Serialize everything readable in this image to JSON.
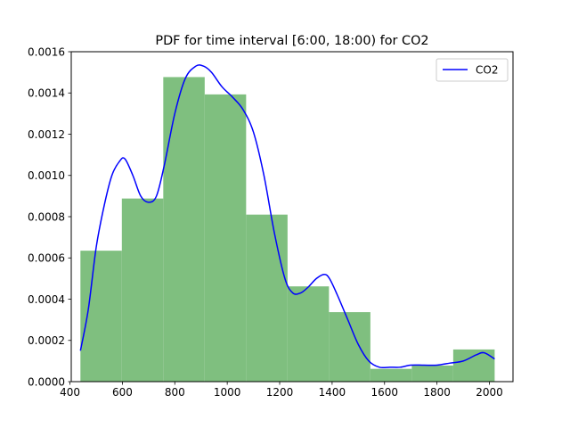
{
  "chart_data": {
    "type": "histogram+line",
    "title": "PDF for time interval [6:00, 18:00) for CO2",
    "xlabel": "",
    "ylabel": "",
    "xlim": [
      405,
      2090
    ],
    "ylim": [
      0,
      0.0016
    ],
    "x_ticks": [
      400,
      600,
      800,
      1000,
      1200,
      1400,
      1600,
      1800,
      2000
    ],
    "y_ticks": [
      0.0,
      0.0002,
      0.0004,
      0.0006,
      0.0008,
      0.001,
      0.0012,
      0.0014,
      0.0016
    ],
    "x_tick_labels": [
      "400",
      "600",
      "800",
      "1000",
      "1200",
      "1400",
      "1600",
      "1800",
      "2000"
    ],
    "y_tick_labels": [
      "0.0000",
      "0.0002",
      "0.0004",
      "0.0006",
      "0.0008",
      "0.0010",
      "0.0012",
      "0.0014",
      "0.0016"
    ],
    "histogram": {
      "color": "#7fbf7f",
      "bins": [
        {
          "x0": 440,
          "x1": 598,
          "density": 0.000635
        },
        {
          "x0": 598,
          "x1": 756,
          "density": 0.000888
        },
        {
          "x0": 756,
          "x1": 914,
          "density": 0.001477
        },
        {
          "x0": 914,
          "x1": 1072,
          "density": 0.001393
        },
        {
          "x0": 1072,
          "x1": 1230,
          "density": 0.00081
        },
        {
          "x0": 1230,
          "x1": 1388,
          "density": 0.000462
        },
        {
          "x0": 1388,
          "x1": 1546,
          "density": 0.000337
        },
        {
          "x0": 1546,
          "x1": 1704,
          "density": 6.2e-05
        },
        {
          "x0": 1704,
          "x1": 1862,
          "density": 7.8e-05
        },
        {
          "x0": 1862,
          "x1": 2020,
          "density": 0.000156
        }
      ]
    },
    "series": [
      {
        "name": "CO2",
        "color": "#0000ff",
        "x": [
          440,
          470,
          500,
          530,
          560,
          590,
          610,
          640,
          670,
          700,
          730,
          760,
          800,
          840,
          880,
          910,
          940,
          980,
          1020,
          1060,
          1100,
          1140,
          1180,
          1220,
          1250,
          1280,
          1310,
          1340,
          1370,
          1390,
          1420,
          1460,
          1500,
          1540,
          1580,
          1620,
          1660,
          1700,
          1750,
          1800,
          1850,
          1900,
          1950,
          1980,
          2020
        ],
        "y": [
          0.00015,
          0.00035,
          0.00065,
          0.00085,
          0.001,
          0.00107,
          0.00108,
          0.001,
          0.0009,
          0.00087,
          0.0009,
          0.00105,
          0.0013,
          0.00147,
          0.00153,
          0.00153,
          0.0015,
          0.00143,
          0.00138,
          0.00132,
          0.00121,
          0.001,
          0.00072,
          0.0005,
          0.00043,
          0.00043,
          0.00046,
          0.0005,
          0.00052,
          0.0005,
          0.00042,
          0.0003,
          0.00018,
          0.0001,
          7e-05,
          7e-05,
          7e-05,
          8e-05,
          8e-05,
          8e-05,
          9e-05,
          0.0001,
          0.00013,
          0.00014,
          0.00011
        ]
      }
    ],
    "legend": {
      "placement": "top-right",
      "entries": [
        "CO2"
      ]
    },
    "grid": false
  }
}
